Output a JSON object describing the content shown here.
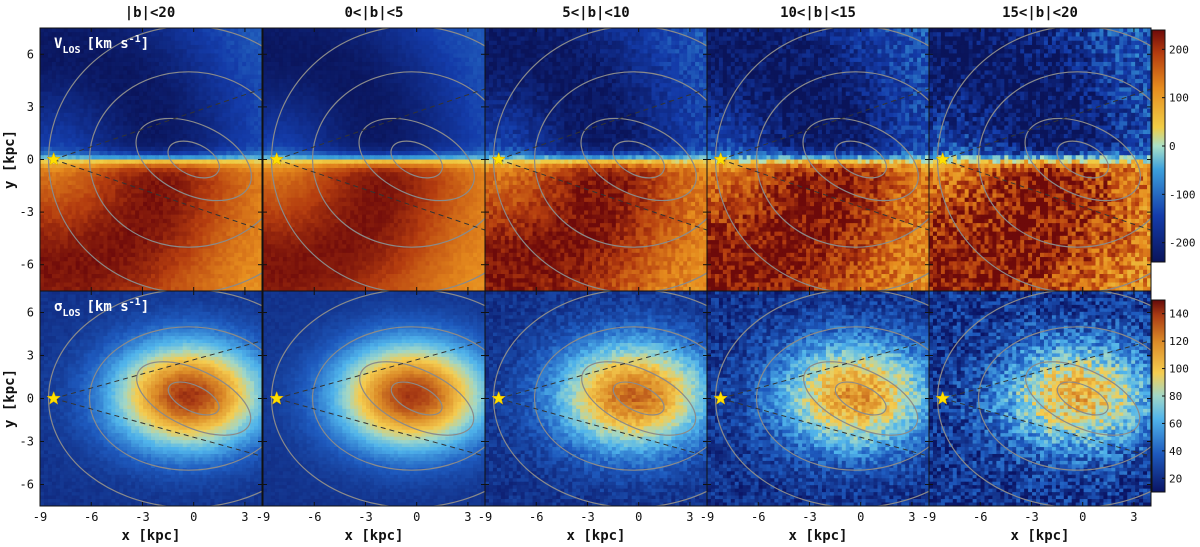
{
  "chart_data": {
    "type": "heatmap",
    "panel_titles": [
      "|b|<20",
      "0<|b|<5",
      "5<|b|<10",
      "10<|b|<15",
      "15<|b|<20"
    ],
    "rows": [
      {
        "quantity": "v_LOS",
        "label_main": "V",
        "label_sub": "LOS",
        "label_units": "[km s",
        "label_exp": "-1",
        "label_close": "]",
        "colorbar_ticks": [
          200,
          100,
          0,
          -100,
          -200
        ],
        "colorbar_range": [
          -240,
          240
        ],
        "colormap": "diverging dark blue - blue - cyan - yellow - orange - dark red"
      },
      {
        "quantity": "sigma_LOS",
        "label_main": "σ",
        "label_sub": "LOS",
        "label_units": "[km s",
        "label_exp": "-1",
        "label_close": "]",
        "colorbar_ticks": [
          140,
          120,
          100,
          80,
          60,
          40,
          20
        ],
        "colorbar_range": [
          10,
          150
        ],
        "colormap": "dark blue - cyan - yellow - orange - dark red"
      }
    ],
    "xlabel": "x [kpc]",
    "ylabel": "y [kpc]",
    "x_ticks": [
      -9,
      -6,
      -3,
      0,
      3
    ],
    "y_ticks": [
      6,
      3,
      0,
      -3,
      -6
    ],
    "xlim": [
      -9,
      4
    ],
    "ylim": [
      -7.5,
      7.5
    ],
    "sun_position": [
      -8.2,
      0
    ],
    "sun_marker": "yellow star",
    "overlays": "grey density contours and dashed sightline wedge from the Sun"
  }
}
